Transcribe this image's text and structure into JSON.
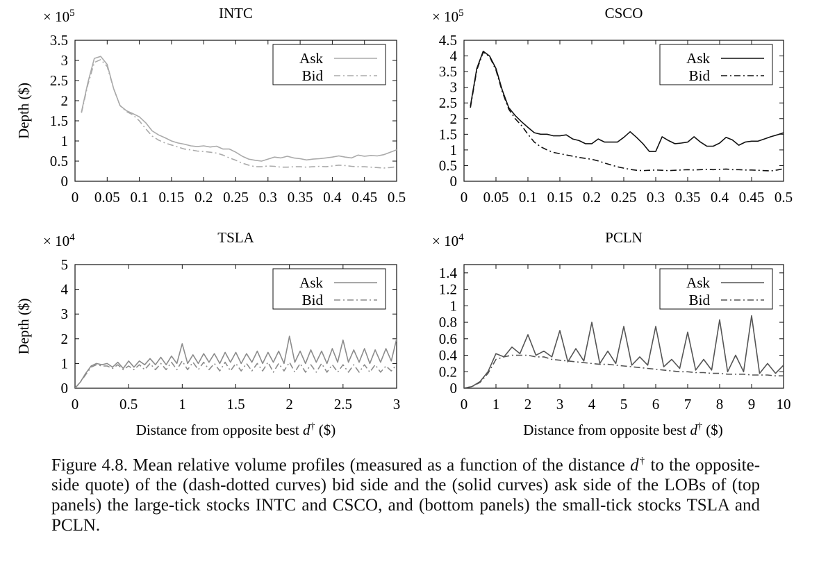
{
  "chart_data": [
    {
      "type": "line",
      "title": "INTC",
      "ylabel": "Depth ($)",
      "xlabel": "",
      "y_multiplier": "× 10",
      "y_exponent": "5",
      "xlim": [
        0,
        0.5
      ],
      "ylim": [
        0,
        3.5
      ],
      "xticks": [
        "0",
        "0.05",
        "0.1",
        "0.15",
        "0.2",
        "0.25",
        "0.3",
        "0.35",
        "0.4",
        "0.45",
        "0.5"
      ],
      "yticks": [
        "0",
        "0.5",
        "1",
        "1.5",
        "2",
        "2.5",
        "3",
        "3.5"
      ],
      "legend": [
        "Ask",
        "Bid"
      ],
      "color": "#aaaaaa",
      "series": [
        {
          "name": "Ask",
          "style": "solid",
          "x": [
            0.01,
            0.02,
            0.03,
            0.04,
            0.05,
            0.06,
            0.07,
            0.08,
            0.09,
            0.1,
            0.11,
            0.12,
            0.13,
            0.14,
            0.15,
            0.16,
            0.17,
            0.18,
            0.19,
            0.2,
            0.21,
            0.22,
            0.23,
            0.24,
            0.25,
            0.26,
            0.27,
            0.28,
            0.29,
            0.3,
            0.31,
            0.32,
            0.33,
            0.34,
            0.35,
            0.36,
            0.37,
            0.38,
            0.39,
            0.4,
            0.41,
            0.42,
            0.43,
            0.44,
            0.45,
            0.46,
            0.47,
            0.48,
            0.49,
            0.5
          ],
          "y": [
            1.72,
            2.45,
            3.05,
            3.1,
            2.9,
            2.3,
            1.88,
            1.75,
            1.68,
            1.6,
            1.45,
            1.25,
            1.15,
            1.08,
            1.0,
            0.95,
            0.92,
            0.88,
            0.86,
            0.88,
            0.85,
            0.87,
            0.8,
            0.8,
            0.72,
            0.62,
            0.55,
            0.52,
            0.5,
            0.55,
            0.6,
            0.58,
            0.62,
            0.58,
            0.56,
            0.53,
            0.55,
            0.56,
            0.58,
            0.6,
            0.63,
            0.6,
            0.58,
            0.65,
            0.62,
            0.64,
            0.63,
            0.66,
            0.72,
            0.78
          ]
        },
        {
          "name": "Bid",
          "style": "dashdot",
          "x": [
            0.01,
            0.02,
            0.03,
            0.04,
            0.05,
            0.06,
            0.07,
            0.08,
            0.09,
            0.1,
            0.11,
            0.12,
            0.13,
            0.14,
            0.15,
            0.16,
            0.17,
            0.18,
            0.19,
            0.2,
            0.21,
            0.22,
            0.23,
            0.24,
            0.25,
            0.26,
            0.27,
            0.28,
            0.29,
            0.3,
            0.31,
            0.32,
            0.33,
            0.34,
            0.35,
            0.36,
            0.37,
            0.38,
            0.39,
            0.4,
            0.41,
            0.42,
            0.43,
            0.44,
            0.45,
            0.46,
            0.47,
            0.48,
            0.49,
            0.5
          ],
          "y": [
            1.7,
            2.4,
            2.95,
            3.02,
            2.85,
            2.3,
            1.88,
            1.73,
            1.65,
            1.5,
            1.3,
            1.12,
            1.02,
            0.95,
            0.9,
            0.85,
            0.8,
            0.78,
            0.75,
            0.74,
            0.72,
            0.7,
            0.65,
            0.58,
            0.52,
            0.45,
            0.4,
            0.36,
            0.36,
            0.38,
            0.37,
            0.35,
            0.35,
            0.36,
            0.36,
            0.35,
            0.36,
            0.37,
            0.36,
            0.38,
            0.4,
            0.39,
            0.37,
            0.36,
            0.36,
            0.35,
            0.34,
            0.33,
            0.34,
            0.36
          ]
        }
      ]
    },
    {
      "type": "line",
      "title": "CSCO",
      "ylabel": "",
      "xlabel": "",
      "y_multiplier": "× 10",
      "y_exponent": "5",
      "xlim": [
        0,
        0.5
      ],
      "ylim": [
        0,
        4.5
      ],
      "xticks": [
        "0",
        "0.05",
        "0.1",
        "0.15",
        "0.2",
        "0.25",
        "0.3",
        "0.35",
        "0.4",
        "0.45",
        "0.5"
      ],
      "yticks": [
        "0",
        "0.5",
        "1",
        "1.5",
        "2",
        "2.5",
        "3",
        "3.5",
        "4",
        "4.5"
      ],
      "legend": [
        "Ask",
        "Bid"
      ],
      "color": "#111111",
      "series": [
        {
          "name": "Ask",
          "style": "solid",
          "x": [
            0.01,
            0.02,
            0.03,
            0.04,
            0.05,
            0.06,
            0.07,
            0.08,
            0.09,
            0.1,
            0.11,
            0.12,
            0.13,
            0.14,
            0.15,
            0.16,
            0.17,
            0.18,
            0.19,
            0.2,
            0.21,
            0.22,
            0.23,
            0.24,
            0.25,
            0.26,
            0.27,
            0.28,
            0.29,
            0.3,
            0.31,
            0.32,
            0.33,
            0.34,
            0.35,
            0.36,
            0.37,
            0.38,
            0.39,
            0.4,
            0.41,
            0.42,
            0.43,
            0.44,
            0.45,
            0.46,
            0.47,
            0.48,
            0.49,
            0.5
          ],
          "y": [
            2.4,
            3.6,
            4.15,
            4.0,
            3.6,
            2.9,
            2.35,
            2.1,
            1.9,
            1.72,
            1.55,
            1.5,
            1.5,
            1.45,
            1.45,
            1.48,
            1.35,
            1.3,
            1.2,
            1.2,
            1.35,
            1.25,
            1.25,
            1.25,
            1.4,
            1.58,
            1.4,
            1.2,
            0.95,
            0.95,
            1.42,
            1.3,
            1.2,
            1.22,
            1.25,
            1.42,
            1.25,
            1.12,
            1.12,
            1.22,
            1.4,
            1.32,
            1.15,
            1.25,
            1.28,
            1.28,
            1.35,
            1.42,
            1.48,
            1.55
          ]
        },
        {
          "name": "Bid",
          "style": "dashdot",
          "x": [
            0.01,
            0.02,
            0.03,
            0.04,
            0.05,
            0.06,
            0.07,
            0.08,
            0.09,
            0.1,
            0.11,
            0.12,
            0.13,
            0.14,
            0.15,
            0.16,
            0.17,
            0.18,
            0.19,
            0.2,
            0.21,
            0.22,
            0.23,
            0.24,
            0.25,
            0.26,
            0.27,
            0.28,
            0.29,
            0.3,
            0.31,
            0.32,
            0.33,
            0.34,
            0.35,
            0.36,
            0.37,
            0.38,
            0.39,
            0.4,
            0.41,
            0.42,
            0.43,
            0.44,
            0.45,
            0.46,
            0.47,
            0.48,
            0.49,
            0.5
          ],
          "y": [
            2.35,
            3.55,
            4.12,
            3.98,
            3.55,
            2.85,
            2.3,
            2.0,
            1.78,
            1.5,
            1.25,
            1.1,
            1.0,
            0.92,
            0.88,
            0.84,
            0.8,
            0.76,
            0.73,
            0.7,
            0.65,
            0.58,
            0.52,
            0.46,
            0.42,
            0.38,
            0.35,
            0.34,
            0.35,
            0.36,
            0.35,
            0.34,
            0.35,
            0.36,
            0.37,
            0.36,
            0.37,
            0.38,
            0.37,
            0.38,
            0.39,
            0.37,
            0.37,
            0.36,
            0.36,
            0.35,
            0.34,
            0.33,
            0.36,
            0.4
          ]
        }
      ]
    },
    {
      "type": "line",
      "title": "TSLA",
      "ylabel": "Depth ($)",
      "xlabel": "Distance from opposite best",
      "xlabel_symbol": "d",
      "xlabel_sup": "†",
      "xlabel_unit": "($)",
      "y_multiplier": "× 10",
      "y_exponent": "4",
      "xlim": [
        0,
        3
      ],
      "ylim": [
        0,
        5
      ],
      "xticks": [
        "0",
        "0.5",
        "1",
        "1.5",
        "2",
        "2.5",
        "3"
      ],
      "yticks": [
        "0",
        "1",
        "2",
        "3",
        "4",
        "5"
      ],
      "legend": [
        "Ask",
        "Bid"
      ],
      "color": "#8c8c8c",
      "series": [
        {
          "name": "Ask",
          "style": "solid",
          "x": [
            0.0,
            0.05,
            0.1,
            0.15,
            0.2,
            0.25,
            0.3,
            0.35,
            0.4,
            0.45,
            0.5,
            0.55,
            0.6,
            0.65,
            0.7,
            0.75,
            0.8,
            0.85,
            0.9,
            0.95,
            1.0,
            1.05,
            1.1,
            1.15,
            1.2,
            1.25,
            1.3,
            1.35,
            1.4,
            1.45,
            1.5,
            1.55,
            1.6,
            1.65,
            1.7,
            1.75,
            1.8,
            1.85,
            1.9,
            1.95,
            2.0,
            2.05,
            2.1,
            2.15,
            2.2,
            2.25,
            2.3,
            2.35,
            2.4,
            2.45,
            2.5,
            2.55,
            2.6,
            2.65,
            2.7,
            2.75,
            2.8,
            2.85,
            2.9,
            2.95,
            3.0
          ],
          "y": [
            0.0,
            0.25,
            0.6,
            0.9,
            1.0,
            0.95,
            1.0,
            0.85,
            1.05,
            0.8,
            1.1,
            0.85,
            1.1,
            0.95,
            1.2,
            0.95,
            1.25,
            0.95,
            1.3,
            1.0,
            1.8,
            1.0,
            1.35,
            1.0,
            1.4,
            1.05,
            1.4,
            1.0,
            1.45,
            1.05,
            1.45,
            1.0,
            1.4,
            1.05,
            1.5,
            1.0,
            1.45,
            1.05,
            1.5,
            1.0,
            2.1,
            1.05,
            1.5,
            1.0,
            1.55,
            1.05,
            1.5,
            1.0,
            1.6,
            1.05,
            1.95,
            1.05,
            1.55,
            1.05,
            1.6,
            1.0,
            1.55,
            1.05,
            1.6,
            1.1,
            2.0
          ]
        },
        {
          "name": "Bid",
          "style": "dashdot",
          "x": [
            0.0,
            0.05,
            0.1,
            0.15,
            0.2,
            0.25,
            0.3,
            0.35,
            0.4,
            0.45,
            0.5,
            0.55,
            0.6,
            0.65,
            0.7,
            0.75,
            0.8,
            0.85,
            0.9,
            0.95,
            1.0,
            1.05,
            1.1,
            1.15,
            1.2,
            1.25,
            1.3,
            1.35,
            1.4,
            1.45,
            1.5,
            1.55,
            1.6,
            1.65,
            1.7,
            1.75,
            1.8,
            1.85,
            1.9,
            1.95,
            2.0,
            2.05,
            2.1,
            2.15,
            2.2,
            2.25,
            2.3,
            2.35,
            2.4,
            2.45,
            2.5,
            2.55,
            2.6,
            2.65,
            2.7,
            2.75,
            2.8,
            2.85,
            2.9,
            2.95,
            3.0
          ],
          "y": [
            0.0,
            0.25,
            0.55,
            0.85,
            0.95,
            0.9,
            0.9,
            0.8,
            0.95,
            0.75,
            0.9,
            0.75,
            0.95,
            0.75,
            1.0,
            0.75,
            1.0,
            0.75,
            1.05,
            0.75,
            1.1,
            0.75,
            1.05,
            0.75,
            1.05,
            0.75,
            1.0,
            0.7,
            1.05,
            0.7,
            1.0,
            0.7,
            1.0,
            0.7,
            1.0,
            0.7,
            1.05,
            0.65,
            1.0,
            0.7,
            1.05,
            0.65,
            1.0,
            0.65,
            0.95,
            0.65,
            1.0,
            0.65,
            0.95,
            0.65,
            0.95,
            0.65,
            0.95,
            0.65,
            0.95,
            0.65,
            0.95,
            0.65,
            0.9,
            0.7,
            0.95
          ]
        }
      ]
    },
    {
      "type": "line",
      "title": "PCLN",
      "ylabel": "",
      "xlabel": "Distance from opposite best",
      "xlabel_symbol": "d",
      "xlabel_sup": "†",
      "xlabel_unit": "($)",
      "y_multiplier": "× 10",
      "y_exponent": "4",
      "xlim": [
        0,
        10
      ],
      "ylim": [
        0,
        1.5
      ],
      "xticks": [
        "0",
        "1",
        "2",
        "3",
        "4",
        "5",
        "6",
        "7",
        "8",
        "9",
        "10"
      ],
      "yticks": [
        "0",
        "0.2",
        "0.4",
        "0.6",
        "0.8",
        "1",
        "1.2",
        "1.4"
      ],
      "legend": [
        "Ask",
        "Bid"
      ],
      "color": "#555555",
      "series": [
        {
          "name": "Ask",
          "style": "solid",
          "x": [
            0.0,
            0.25,
            0.5,
            0.75,
            1.0,
            1.25,
            1.5,
            1.75,
            2.0,
            2.25,
            2.5,
            2.75,
            3.0,
            3.25,
            3.5,
            3.75,
            4.0,
            4.25,
            4.5,
            4.75,
            5.0,
            5.25,
            5.5,
            5.75,
            6.0,
            6.25,
            6.5,
            6.75,
            7.0,
            7.25,
            7.5,
            7.75,
            8.0,
            8.25,
            8.5,
            8.75,
            9.0,
            9.25,
            9.5,
            9.75,
            10.0
          ],
          "y": [
            0.0,
            0.02,
            0.08,
            0.2,
            0.42,
            0.38,
            0.5,
            0.42,
            0.65,
            0.4,
            0.45,
            0.38,
            0.7,
            0.32,
            0.48,
            0.33,
            0.8,
            0.3,
            0.45,
            0.3,
            0.75,
            0.28,
            0.38,
            0.28,
            0.75,
            0.26,
            0.35,
            0.24,
            0.68,
            0.22,
            0.35,
            0.22,
            0.83,
            0.2,
            0.4,
            0.2,
            0.88,
            0.18,
            0.3,
            0.18,
            0.28
          ]
        },
        {
          "name": "Bid",
          "style": "dashdot",
          "x": [
            0.0,
            0.25,
            0.5,
            0.75,
            1.0,
            1.25,
            1.5,
            1.75,
            2.0,
            2.25,
            2.5,
            2.75,
            3.0,
            3.25,
            3.5,
            3.75,
            4.0,
            4.25,
            4.5,
            4.75,
            5.0,
            5.25,
            5.5,
            5.75,
            6.0,
            6.25,
            6.5,
            6.75,
            7.0,
            7.25,
            7.5,
            7.75,
            8.0,
            8.25,
            8.5,
            8.75,
            9.0,
            9.25,
            9.5,
            9.75,
            10.0
          ],
          "y": [
            0.0,
            0.02,
            0.07,
            0.18,
            0.35,
            0.38,
            0.4,
            0.4,
            0.4,
            0.38,
            0.38,
            0.35,
            0.34,
            0.33,
            0.32,
            0.31,
            0.3,
            0.29,
            0.29,
            0.28,
            0.27,
            0.26,
            0.25,
            0.24,
            0.23,
            0.22,
            0.21,
            0.2,
            0.2,
            0.19,
            0.19,
            0.18,
            0.18,
            0.17,
            0.17,
            0.17,
            0.16,
            0.16,
            0.16,
            0.15,
            0.15
          ]
        }
      ]
    }
  ],
  "caption": {
    "lead": "Figure 4.8.  Mean relative volume profiles (measured as a function of the distance",
    "symbol": "d",
    "sup": "†",
    "rest": " to the opposite-side quote) of the (dash-dotted curves) bid side and the (solid curves) ask side of the LOBs of (top panels) the large-tick stocks INTC and CSCO, and (bottom panels) the small-tick stocks TSLA and PCLN."
  }
}
